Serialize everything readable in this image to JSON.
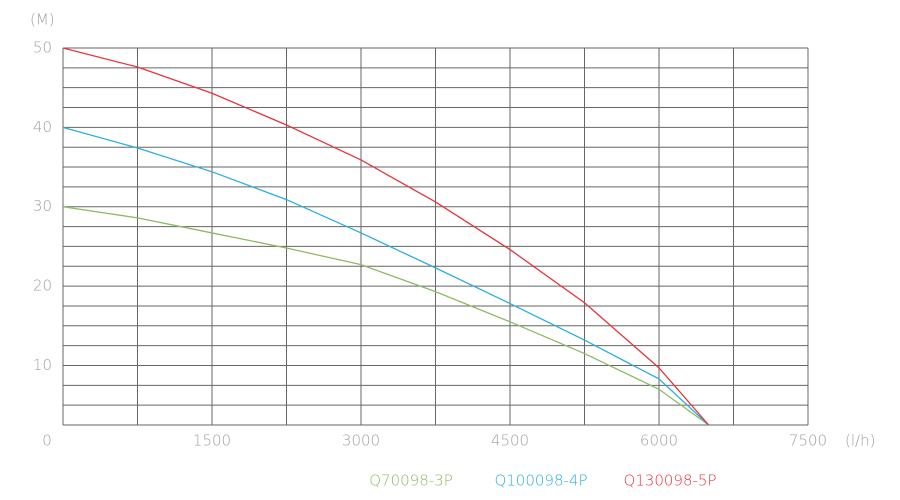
{
  "chart_data": {
    "type": "line",
    "y_label": "(M)",
    "x_label": "(l/h)",
    "x": [
      0,
      750,
      1500,
      2250,
      3000,
      3750,
      4500,
      5250,
      6000,
      6500
    ],
    "series": [
      {
        "name": "Q70098-3P",
        "color": "#8dbb62",
        "values": [
          30,
          28.6,
          26.7,
          24.8,
          22.7,
          19.3,
          15.5,
          11.5,
          7.0,
          2.5
        ]
      },
      {
        "name": "Q100098-4P",
        "color": "#2aaee0",
        "values": [
          40,
          37.4,
          34.4,
          30.9,
          26.7,
          22.3,
          17.8,
          13.2,
          8.3,
          2.5
        ]
      },
      {
        "name": "Q130098-5P",
        "color": "#e8343c",
        "values": [
          50,
          47.6,
          44.3,
          40.3,
          35.9,
          30.6,
          24.6,
          17.9,
          9.7,
          2.5
        ]
      }
    ],
    "xlim": [
      0,
      7500
    ],
    "ylim": [
      2.5,
      50
    ],
    "xticks": [
      0,
      1500,
      3000,
      4500,
      6000,
      7500
    ],
    "yticks": [
      10,
      20,
      30,
      40,
      50
    ],
    "x_gridlines": [
      0,
      750,
      1500,
      2250,
      3000,
      3750,
      4500,
      5250,
      6000,
      6750,
      7500
    ],
    "y_gridlines": [
      2.5,
      5,
      7.5,
      10,
      12.5,
      15,
      17.5,
      20,
      22.5,
      25,
      27.5,
      30,
      32.5,
      35,
      37.5,
      40,
      42.5,
      45,
      47.5,
      50
    ],
    "grid": true
  }
}
